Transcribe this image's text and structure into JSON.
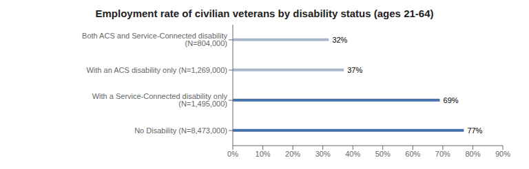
{
  "chart_data": {
    "type": "bar",
    "orientation": "horizontal",
    "title": "Employment rate of civilian veterans by disability status (ages 21-64)",
    "categories": [
      "Both ACS and Service-Connected disability (N=804,000)",
      "With an ACS disability only (N=1,269,000)",
      "With a Service-Connected disability only (N=1,495,000)",
      "No Disability (N=8,473,000)"
    ],
    "values": [
      32,
      37,
      69,
      77
    ],
    "value_labels": [
      "32%",
      "37%",
      "69%",
      "77%"
    ],
    "data_labels": true,
    "colors": [
      "#a8b8cc",
      "#a8b8cc",
      "#4472a8",
      "#4472a8"
    ],
    "xlim": [
      0,
      90
    ],
    "xticks": [
      {
        "value": 0,
        "label": "0%"
      },
      {
        "value": 10,
        "label": "10%"
      },
      {
        "value": 20,
        "label": "20%"
      },
      {
        "value": 30,
        "label": "30%"
      },
      {
        "value": 40,
        "label": "40%"
      },
      {
        "value": 50,
        "label": "50%"
      },
      {
        "value": 60,
        "label": "60%"
      },
      {
        "value": 70,
        "label": "70%"
      },
      {
        "value": 80,
        "label": "80%"
      },
      {
        "value": 90,
        "label": "90%"
      }
    ],
    "grid": false
  }
}
